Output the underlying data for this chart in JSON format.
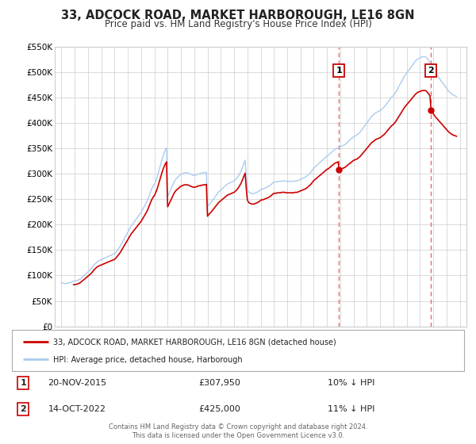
{
  "title": "33, ADCOCK ROAD, MARKET HARBOROUGH, LE16 8GN",
  "subtitle": "Price paid vs. HM Land Registry's House Price Index (HPI)",
  "background_color": "#ffffff",
  "grid_color": "#cccccc",
  "line1_color": "#cc0000",
  "line2_color": "#aaccee",
  "marker_color": "#cc0000",
  "vline_color": "#ee6666",
  "annotation1": {
    "date_num": 2015.9,
    "value": 307950,
    "label": "1",
    "date_str": "20-NOV-2015",
    "price": "£307,950",
    "pct": "10% ↓ HPI"
  },
  "annotation2": {
    "date_num": 2022.8,
    "value": 425000,
    "label": "2",
    "date_str": "14-OCT-2022",
    "price": "£425,000",
    "pct": "11% ↓ HPI"
  },
  "ylim": [
    0,
    550000
  ],
  "yticks": [
    0,
    50000,
    100000,
    150000,
    200000,
    250000,
    300000,
    350000,
    400000,
    450000,
    500000,
    550000
  ],
  "ytick_labels": [
    "£0",
    "£50K",
    "£100K",
    "£150K",
    "£200K",
    "£250K",
    "£300K",
    "£350K",
    "£400K",
    "£450K",
    "£500K",
    "£550K"
  ],
  "xlim": [
    1994.5,
    2025.5
  ],
  "xticks": [
    1995,
    1996,
    1997,
    1998,
    1999,
    2000,
    2001,
    2002,
    2003,
    2004,
    2005,
    2006,
    2007,
    2008,
    2009,
    2010,
    2011,
    2012,
    2013,
    2014,
    2015,
    2016,
    2017,
    2018,
    2019,
    2020,
    2021,
    2022,
    2023,
    2024,
    2025
  ],
  "legend1_label": "33, ADCOCK ROAD, MARKET HARBOROUGH, LE16 8GN (detached house)",
  "legend2_label": "HPI: Average price, detached house, Harborough",
  "footer1": "Contains HM Land Registry data © Crown copyright and database right 2024.",
  "footer2": "This data is licensed under the Open Government Licence v3.0.",
  "hpi_data": {
    "dates": [
      1995.0,
      1995.083,
      1995.167,
      1995.25,
      1995.333,
      1995.417,
      1995.5,
      1995.583,
      1995.667,
      1995.75,
      1995.833,
      1995.917,
      1996.0,
      1996.083,
      1996.167,
      1996.25,
      1996.333,
      1996.417,
      1996.5,
      1996.583,
      1996.667,
      1996.75,
      1996.833,
      1996.917,
      1997.0,
      1997.083,
      1997.167,
      1997.25,
      1997.333,
      1997.417,
      1997.5,
      1997.583,
      1997.667,
      1997.75,
      1997.833,
      1997.917,
      1998.0,
      1998.083,
      1998.167,
      1998.25,
      1998.333,
      1998.417,
      1998.5,
      1998.583,
      1998.667,
      1998.75,
      1998.833,
      1998.917,
      1999.0,
      1999.083,
      1999.167,
      1999.25,
      1999.333,
      1999.417,
      1999.5,
      1999.583,
      1999.667,
      1999.75,
      1999.833,
      1999.917,
      2000.0,
      2000.083,
      2000.167,
      2000.25,
      2000.333,
      2000.417,
      2000.5,
      2000.583,
      2000.667,
      2000.75,
      2000.833,
      2000.917,
      2001.0,
      2001.083,
      2001.167,
      2001.25,
      2001.333,
      2001.417,
      2001.5,
      2001.583,
      2001.667,
      2001.75,
      2001.833,
      2001.917,
      2002.0,
      2002.083,
      2002.167,
      2002.25,
      2002.333,
      2002.417,
      2002.5,
      2002.583,
      2002.667,
      2002.75,
      2002.833,
      2002.917,
      2003.0,
      2003.083,
      2003.167,
      2003.25,
      2003.333,
      2003.417,
      2003.5,
      2003.583,
      2003.667,
      2003.75,
      2003.833,
      2003.917,
      2004.0,
      2004.083,
      2004.167,
      2004.25,
      2004.333,
      2004.417,
      2004.5,
      2004.583,
      2004.667,
      2004.75,
      2004.833,
      2004.917,
      2005.0,
      2005.083,
      2005.167,
      2005.25,
      2005.333,
      2005.417,
      2005.5,
      2005.583,
      2005.667,
      2005.75,
      2005.833,
      2005.917,
      2006.0,
      2006.083,
      2006.167,
      2006.25,
      2006.333,
      2006.417,
      2006.5,
      2006.583,
      2006.667,
      2006.75,
      2006.833,
      2006.917,
      2007.0,
      2007.083,
      2007.167,
      2007.25,
      2007.333,
      2007.417,
      2007.5,
      2007.583,
      2007.667,
      2007.75,
      2007.833,
      2007.917,
      2008.0,
      2008.083,
      2008.167,
      2008.25,
      2008.333,
      2008.417,
      2008.5,
      2008.583,
      2008.667,
      2008.75,
      2008.833,
      2008.917,
      2009.0,
      2009.083,
      2009.167,
      2009.25,
      2009.333,
      2009.417,
      2009.5,
      2009.583,
      2009.667,
      2009.75,
      2009.833,
      2009.917,
      2010.0,
      2010.083,
      2010.167,
      2010.25,
      2010.333,
      2010.417,
      2010.5,
      2010.583,
      2010.667,
      2010.75,
      2010.833,
      2010.917,
      2011.0,
      2011.083,
      2011.167,
      2011.25,
      2011.333,
      2011.417,
      2011.5,
      2011.583,
      2011.667,
      2011.75,
      2011.833,
      2011.917,
      2012.0,
      2012.083,
      2012.167,
      2012.25,
      2012.333,
      2012.417,
      2012.5,
      2012.583,
      2012.667,
      2012.75,
      2012.833,
      2012.917,
      2013.0,
      2013.083,
      2013.167,
      2013.25,
      2013.333,
      2013.417,
      2013.5,
      2013.583,
      2013.667,
      2013.75,
      2013.833,
      2013.917,
      2014.0,
      2014.083,
      2014.167,
      2014.25,
      2014.333,
      2014.417,
      2014.5,
      2014.583,
      2014.667,
      2014.75,
      2014.833,
      2014.917,
      2015.0,
      2015.083,
      2015.167,
      2015.25,
      2015.333,
      2015.417,
      2015.5,
      2015.583,
      2015.667,
      2015.75,
      2015.833,
      2015.917,
      2016.0,
      2016.083,
      2016.167,
      2016.25,
      2016.333,
      2016.417,
      2016.5,
      2016.583,
      2016.667,
      2016.75,
      2016.833,
      2016.917,
      2017.0,
      2017.083,
      2017.167,
      2017.25,
      2017.333,
      2017.417,
      2017.5,
      2017.583,
      2017.667,
      2017.75,
      2017.833,
      2017.917,
      2018.0,
      2018.083,
      2018.167,
      2018.25,
      2018.333,
      2018.417,
      2018.5,
      2018.583,
      2018.667,
      2018.75,
      2018.833,
      2018.917,
      2019.0,
      2019.083,
      2019.167,
      2019.25,
      2019.333,
      2019.417,
      2019.5,
      2019.583,
      2019.667,
      2019.75,
      2019.833,
      2019.917,
      2020.0,
      2020.083,
      2020.167,
      2020.25,
      2020.333,
      2020.417,
      2020.5,
      2020.583,
      2020.667,
      2020.75,
      2020.833,
      2020.917,
      2021.0,
      2021.083,
      2021.167,
      2021.25,
      2021.333,
      2021.417,
      2021.5,
      2021.583,
      2021.667,
      2021.75,
      2021.833,
      2021.917,
      2022.0,
      2022.083,
      2022.167,
      2022.25,
      2022.333,
      2022.417,
      2022.5,
      2022.583,
      2022.667,
      2022.75,
      2022.833,
      2022.917,
      2023.0,
      2023.083,
      2023.167,
      2023.25,
      2023.333,
      2023.417,
      2023.5,
      2023.583,
      2023.667,
      2023.75,
      2023.833,
      2023.917,
      2024.0,
      2024.083,
      2024.167,
      2024.25,
      2024.333,
      2024.417,
      2024.5,
      2024.583,
      2024.667,
      2024.75
    ],
    "values": [
      86000,
      85000,
      84500,
      84000,
      84000,
      84500,
      85000,
      85500,
      86000,
      87000,
      88000,
      89000,
      89000,
      89500,
      90000,
      91000,
      92000,
      93000,
      95000,
      97000,
      99000,
      101000,
      103000,
      105000,
      107000,
      109000,
      111000,
      113000,
      116000,
      119000,
      122000,
      124000,
      126000,
      128000,
      129000,
      130000,
      131000,
      132000,
      133000,
      134000,
      135000,
      136000,
      137000,
      138000,
      139000,
      140000,
      141000,
      142000,
      143000,
      145000,
      148000,
      151000,
      154000,
      157000,
      161000,
      165000,
      169000,
      173000,
      177000,
      181000,
      185000,
      189000,
      193000,
      197000,
      200000,
      203000,
      206000,
      209000,
      212000,
      215000,
      218000,
      221000,
      224000,
      228000,
      232000,
      236000,
      240000,
      244000,
      249000,
      255000,
      261000,
      267000,
      272000,
      276000,
      279000,
      284000,
      290000,
      297000,
      305000,
      313000,
      321000,
      329000,
      336000,
      342000,
      347000,
      351000,
      255000,
      260000,
      265000,
      270000,
      275000,
      280000,
      285000,
      288000,
      291000,
      293000,
      295000,
      297000,
      299000,
      300000,
      301000,
      302000,
      302000,
      302000,
      302000,
      301000,
      300000,
      299000,
      298000,
      297000,
      297000,
      297000,
      298000,
      299000,
      300000,
      300000,
      301000,
      301000,
      302000,
      302000,
      302000,
      303000,
      235000,
      238000,
      241000,
      243000,
      246000,
      249000,
      252000,
      255000,
      258000,
      261000,
      264000,
      266000,
      268000,
      270000,
      272000,
      274000,
      276000,
      278000,
      280000,
      281000,
      282000,
      283000,
      284000,
      285000,
      286000,
      288000,
      290000,
      293000,
      296000,
      300000,
      304000,
      309000,
      315000,
      321000,
      327000,
      295000,
      270000,
      265000,
      263000,
      262000,
      261000,
      261000,
      261000,
      262000,
      263000,
      264000,
      265000,
      267000,
      269000,
      270000,
      270000,
      271000,
      272000,
      273000,
      274000,
      275000,
      276000,
      278000,
      280000,
      282000,
      284000,
      284000,
      284000,
      285000,
      285000,
      285000,
      285000,
      286000,
      286000,
      286000,
      286000,
      285000,
      285000,
      285000,
      285000,
      285000,
      285000,
      285000,
      285000,
      286000,
      286000,
      286000,
      287000,
      288000,
      289000,
      290000,
      291000,
      292000,
      293000,
      294000,
      296000,
      298000,
      300000,
      302000,
      305000,
      308000,
      311000,
      313000,
      315000,
      317000,
      319000,
      321000,
      323000,
      325000,
      327000,
      329000,
      331000,
      333000,
      335000,
      336000,
      338000,
      340000,
      342000,
      344000,
      346000,
      348000,
      349000,
      350000,
      351000,
      352000,
      353000,
      354000,
      355000,
      356000,
      357000,
      359000,
      361000,
      363000,
      365000,
      367000,
      369000,
      371000,
      373000,
      374000,
      375000,
      376000,
      378000,
      380000,
      382000,
      385000,
      388000,
      391000,
      394000,
      397000,
      400000,
      403000,
      406000,
      409000,
      412000,
      414000,
      416000,
      418000,
      420000,
      421000,
      422000,
      423000,
      424000,
      426000,
      428000,
      430000,
      432000,
      435000,
      438000,
      441000,
      444000,
      447000,
      450000,
      452000,
      454000,
      457000,
      460000,
      464000,
      468000,
      472000,
      476000,
      480000,
      484000,
      488000,
      492000,
      495000,
      498000,
      501000,
      504000,
      507000,
      510000,
      513000,
      516000,
      519000,
      522000,
      524000,
      526000,
      527000,
      528000,
      529000,
      530000,
      530000,
      530000,
      530000,
      528000,
      525000,
      522000,
      518000,
      514000,
      510000,
      506000,
      502000,
      498000,
      495000,
      492000,
      489000,
      486000,
      483000,
      480000,
      477000,
      474000,
      471000,
      468000,
      465000,
      462000,
      460000,
      458000,
      456000,
      455000,
      454000,
      453000,
      452000
    ]
  },
  "price_paid_data": {
    "dates": [
      1995.9,
      2015.9,
      2022.8
    ],
    "values": [
      82000,
      307950,
      425000
    ]
  }
}
